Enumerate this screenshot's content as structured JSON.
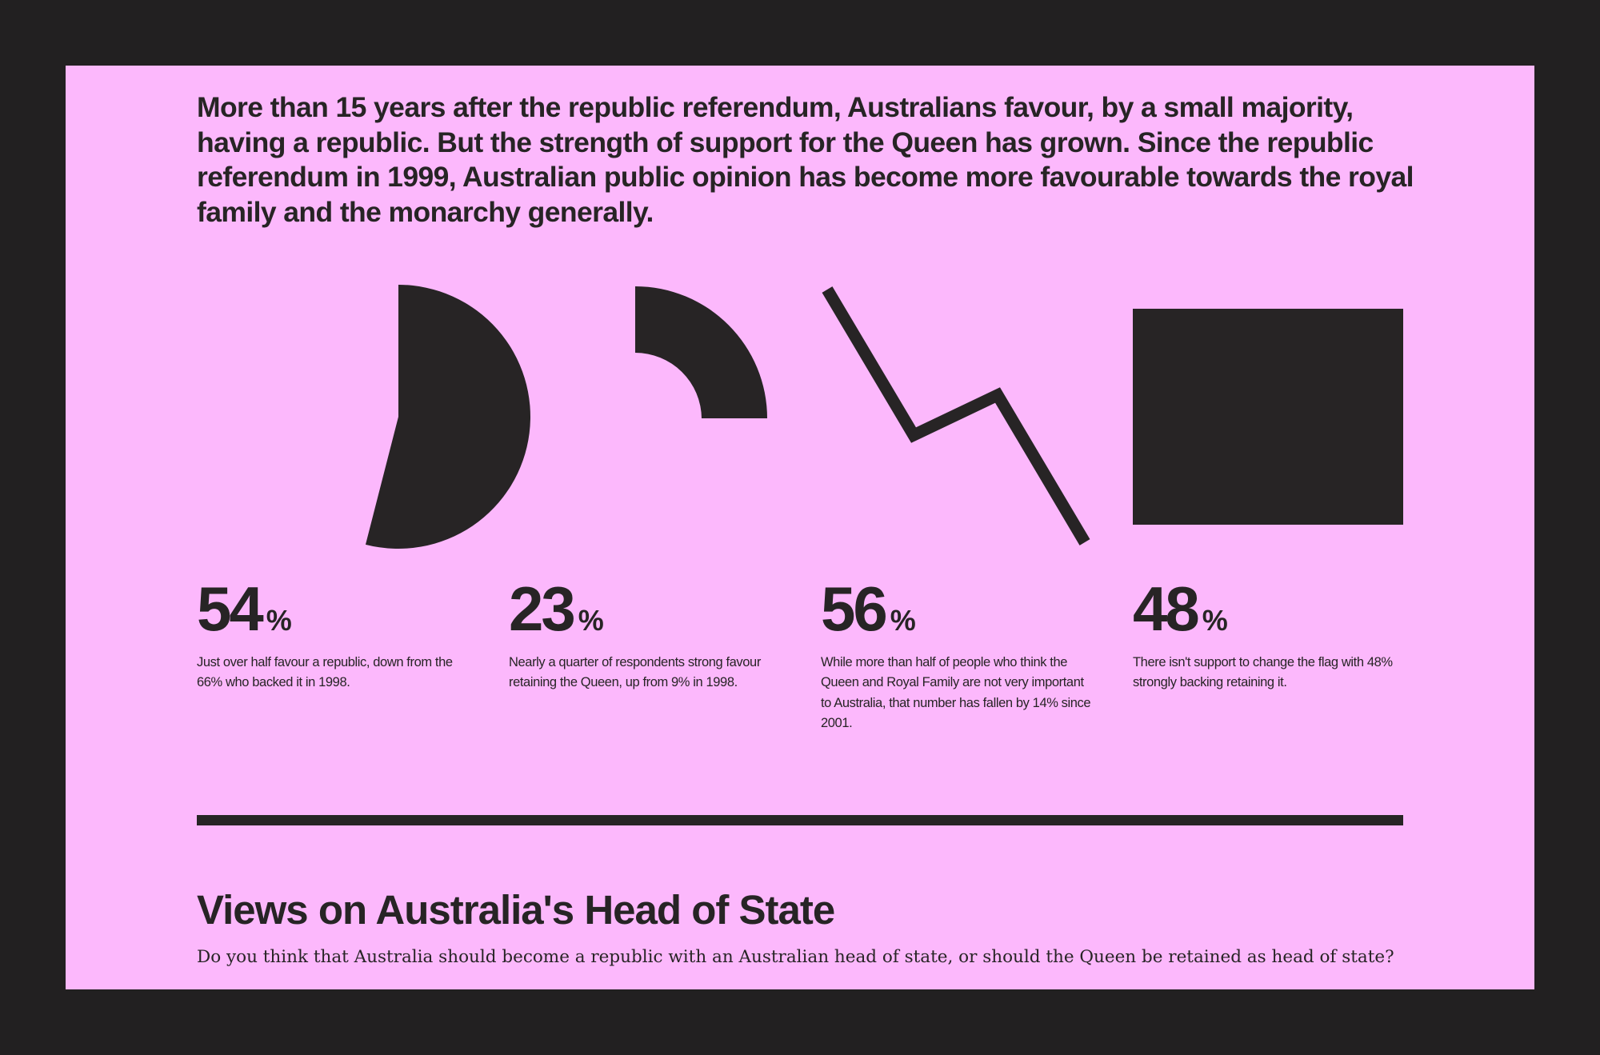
{
  "intro": {
    "text": "More than 15 years after the republic referendum, Australians favour, by a small majority, having a republic. But the strength of support for the Queen has grown. Since the republic referendum in 1999, Australian public opinion has become more favourable towards the royal family and the monarchy generally."
  },
  "colors": {
    "background": "#222021",
    "panel": "#fcb8fc",
    "ink": "#272425"
  },
  "stats": [
    {
      "value": "54",
      "unit": "%",
      "description": "Just over half favour a republic, down from the 66% who backed it in 1998.",
      "icon": "pie-slice-icon",
      "fill_fraction": 0.54
    },
    {
      "value": "23",
      "unit": "%",
      "description": "Nearly a quarter of respondents strong favour retaining the Queen, up from 9% in 1998.",
      "icon": "quarter-ring-icon",
      "fill_fraction": 0.23
    },
    {
      "value": "56",
      "unit": "%",
      "description": "While more than half of people who think the Queen and Royal Family are not very important to Australia, that number has fallen by 14% since 2001.",
      "icon": "zigzag-line-icon"
    },
    {
      "value": "48",
      "unit": "%",
      "description": "There isn't support to change the flag with 48% strongly backing retaining it.",
      "icon": "rectangle-icon"
    }
  ],
  "section": {
    "title": "Views on Australia's Head of State",
    "question": "Do you think that Australia should become a republic with an Australian head of state, or should the Queen be retained as head of state?"
  }
}
